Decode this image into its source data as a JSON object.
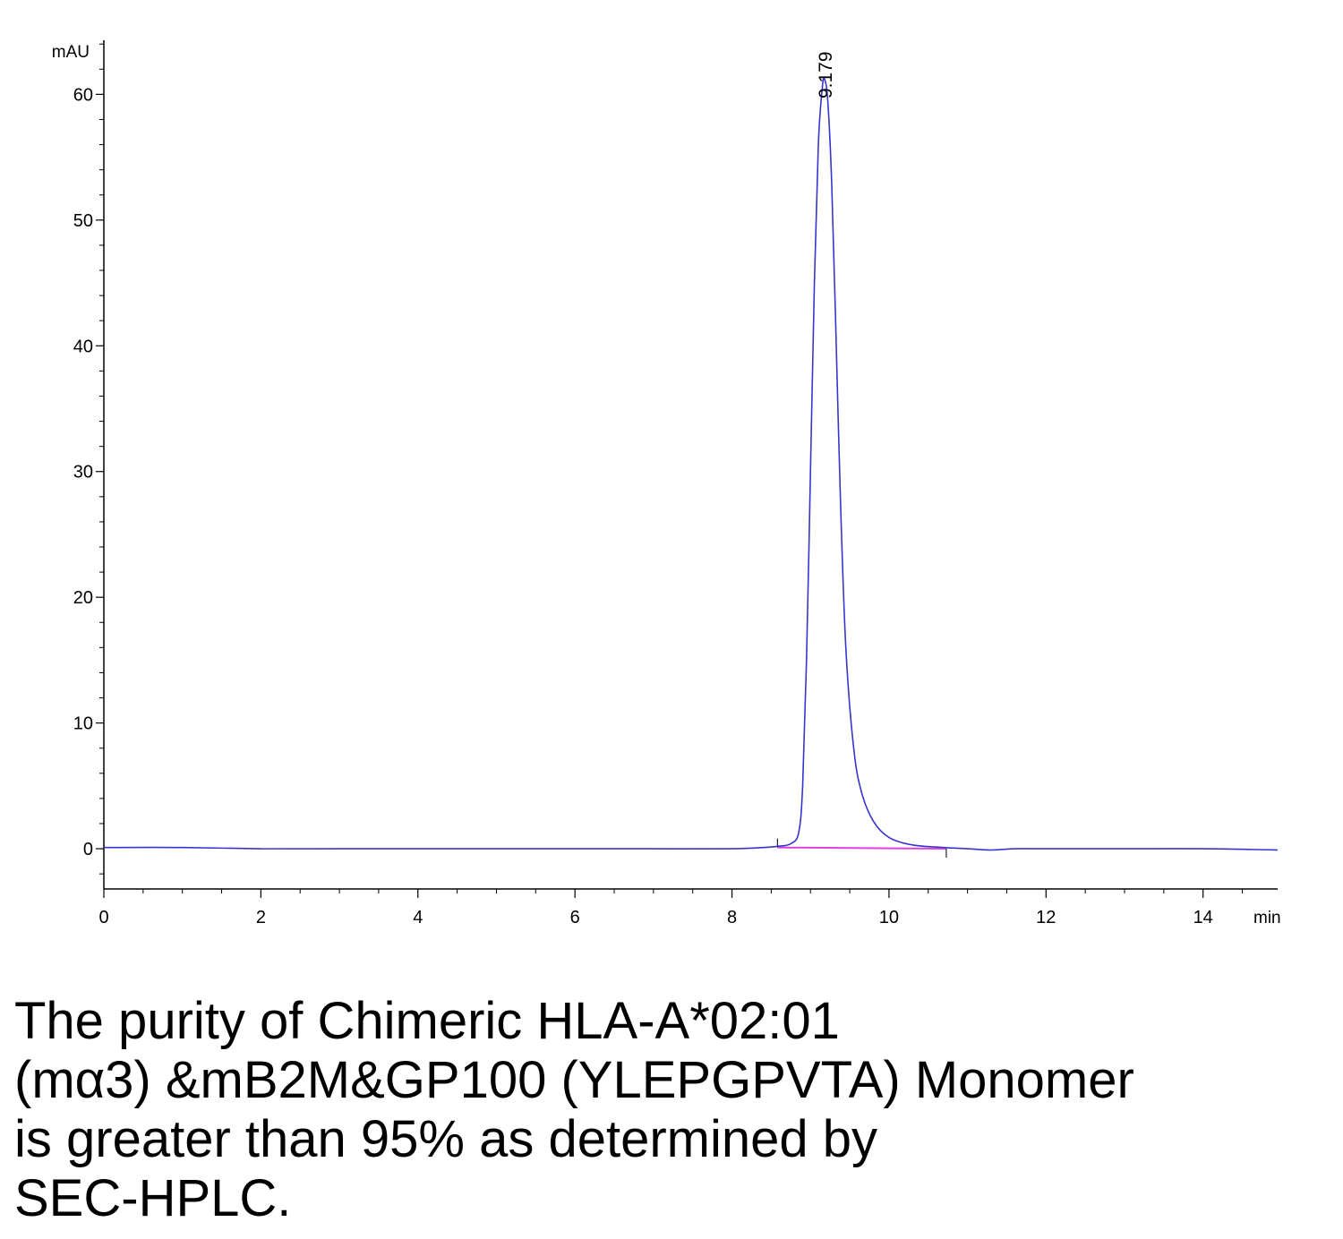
{
  "chart_data": {
    "type": "line",
    "title": "",
    "xlabel": "min",
    "ylabel": "mAU",
    "xlim": [
      0,
      14.95
    ],
    "ylim": [
      -3.2,
      64.3
    ],
    "x_ticks": [
      0,
      2,
      4,
      6,
      8,
      10,
      12,
      14
    ],
    "y_ticks": [
      0,
      10,
      20,
      30,
      40,
      50,
      60
    ],
    "grid": false,
    "legend": "none",
    "colors": {
      "signal": "#3535d0",
      "baseline": "#e040e0",
      "axis": "#000000"
    },
    "peak_label": "9.179",
    "series": [
      {
        "x": [
          0,
          1,
          2,
          3,
          4,
          5,
          6,
          7,
          8,
          8.4,
          8.6,
          8.75,
          8.85,
          8.9,
          8.95,
          9.0,
          9.05,
          9.1,
          9.15,
          9.179,
          9.22,
          9.27,
          9.32,
          9.38,
          9.45,
          9.55,
          9.65,
          9.8,
          10.0,
          10.3,
          10.7,
          11.0,
          11.3,
          11.6,
          12,
          13,
          14,
          14.95
        ],
        "y": [
          0.1,
          0.1,
          0.0,
          0.0,
          0.0,
          0.0,
          0.0,
          0.0,
          0.0,
          0.1,
          0.2,
          0.4,
          1.3,
          5.0,
          15.0,
          30.0,
          45.0,
          56.0,
          60.5,
          61.2,
          59.5,
          53.0,
          42.0,
          28.0,
          16.0,
          8.0,
          4.5,
          2.2,
          0.9,
          0.3,
          0.1,
          0.0,
          -0.1,
          0.0,
          0.0,
          0.0,
          0.0,
          -0.1
        ]
      }
    ],
    "integration": {
      "start_x": 8.58,
      "end_x": 10.73
    }
  },
  "caption": {
    "lines": [
      "The purity of Chimeric HLA-A*02:01",
      "(mα3) &mB2M&GP100 (YLEPGPVTA) Monomer",
      "is greater than 95% as determined by",
      "SEC-HPLC."
    ]
  }
}
